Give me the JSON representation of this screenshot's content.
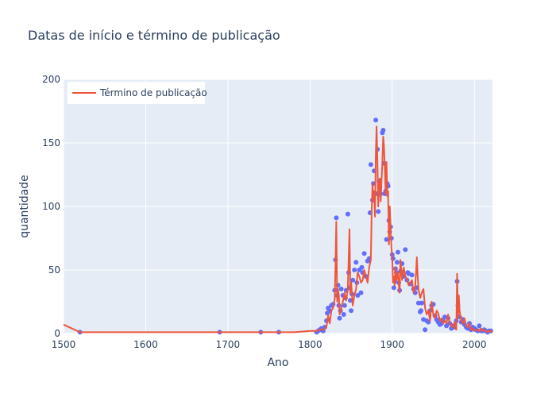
{
  "chart_data": {
    "type": "scatter",
    "title": "Datas de início e término de publicação",
    "xlabel": "Ano",
    "ylabel": "quantidade",
    "xlim": [
      1500,
      2022
    ],
    "ylim": [
      0,
      200
    ],
    "xticks": [
      1500,
      1600,
      1700,
      1800,
      1900,
      2000
    ],
    "yticks": [
      0,
      50,
      100,
      150,
      200
    ],
    "grid": true,
    "legend_position": "top-left",
    "colors": {
      "line": "#ef553b",
      "markers": "#636efa",
      "plot_bg": "#e5ecf6",
      "grid": "#ffffff",
      "text": "#2a3f5f"
    },
    "series": [
      {
        "kind": "markers",
        "x": [
          1520,
          1690,
          1740,
          1762,
          1808,
          1810,
          1812,
          1814,
          1816,
          1818,
          1820,
          1821,
          1822,
          1824,
          1826,
          1828,
          1830,
          1831,
          1832,
          1833,
          1834,
          1835,
          1836,
          1837,
          1838,
          1840,
          1841,
          1842,
          1843,
          1844,
          1846,
          1847,
          1848,
          1849,
          1850,
          1851,
          1852,
          1854,
          1856,
          1857,
          1858,
          1860,
          1862,
          1863,
          1864,
          1866,
          1868,
          1870,
          1872,
          1873,
          1874,
          1876,
          1877,
          1878,
          1880,
          1881,
          1882,
          1883,
          1884,
          1885,
          1886,
          1888,
          1889,
          1890,
          1891,
          1892,
          1893,
          1894,
          1895,
          1896,
          1897,
          1898,
          1899,
          1900,
          1901,
          1902,
          1903,
          1904,
          1905,
          1906,
          1907,
          1908,
          1909,
          1910,
          1912,
          1914,
          1916,
          1918,
          1919,
          1920,
          1922,
          1924,
          1926,
          1928,
          1930,
          1932,
          1934,
          1935,
          1936,
          1938,
          1940,
          1942,
          1944,
          1946,
          1948,
          1950,
          1952,
          1954,
          1956,
          1958,
          1960,
          1962,
          1964,
          1966,
          1968,
          1970,
          1972,
          1974,
          1976,
          1978,
          1979,
          1980,
          1982,
          1984,
          1986,
          1988,
          1990,
          1992,
          1994,
          1996,
          1998,
          2000,
          2002,
          2004,
          2006,
          2008,
          2010,
          2012,
          2014,
          2016,
          2018,
          2020
        ],
        "y": [
          1,
          1,
          1,
          1,
          1,
          2,
          3,
          4,
          2,
          5,
          10,
          16,
          20,
          18,
          22,
          23,
          34,
          58,
          91,
          30,
          38,
          22,
          12,
          18,
          35,
          30,
          15,
          22,
          28,
          34,
          94,
          48,
          36,
          26,
          18,
          31,
          42,
          50,
          56,
          40,
          30,
          50,
          32,
          52,
          48,
          63,
          45,
          57,
          59,
          95,
          133,
          105,
          118,
          128,
          168,
          110,
          145,
          96,
          120,
          115,
          110,
          158,
          160,
          134,
          110,
          112,
          74,
          118,
          116,
          89,
          80,
          84,
          75,
          62,
          59,
          36,
          41,
          51,
          48,
          56,
          64,
          40,
          34,
          49,
          55,
          45,
          66,
          42,
          48,
          47,
          39,
          46,
          35,
          32,
          36,
          24,
          17,
          18,
          24,
          11,
          3,
          10,
          9,
          18,
          22,
          23,
          14,
          11,
          9,
          7,
          8,
          10,
          13,
          6,
          12,
          8,
          4,
          6,
          5,
          10,
          41,
          22,
          13,
          9,
          11,
          7,
          5,
          4,
          8,
          3,
          5,
          4,
          3,
          2,
          6,
          2,
          2,
          3,
          2,
          1,
          2,
          2
        ]
      },
      {
        "name": "Término de publicação",
        "kind": "line",
        "x": [
          1500,
          1520,
          1600,
          1700,
          1780,
          1800,
          1808,
          1812,
          1816,
          1818,
          1820,
          1822,
          1824,
          1826,
          1828,
          1830,
          1831,
          1832,
          1833,
          1834,
          1835,
          1836,
          1838,
          1840,
          1842,
          1844,
          1846,
          1847,
          1848,
          1849,
          1850,
          1852,
          1854,
          1856,
          1858,
          1860,
          1862,
          1864,
          1866,
          1868,
          1870,
          1872,
          1874,
          1875,
          1876,
          1877,
          1878,
          1879,
          1880,
          1881,
          1882,
          1883,
          1884,
          1885,
          1886,
          1887,
          1888,
          1889,
          1890,
          1891,
          1892,
          1893,
          1894,
          1895,
          1896,
          1897,
          1898,
          1899,
          1900,
          1901,
          1902,
          1903,
          1904,
          1905,
          1906,
          1907,
          1908,
          1909,
          1910,
          1911,
          1912,
          1914,
          1916,
          1918,
          1920,
          1922,
          1924,
          1926,
          1928,
          1929,
          1930,
          1931,
          1932,
          1934,
          1936,
          1938,
          1940,
          1942,
          1944,
          1946,
          1948,
          1950,
          1952,
          1954,
          1956,
          1958,
          1960,
          1962,
          1964,
          1966,
          1968,
          1970,
          1972,
          1974,
          1976,
          1977,
          1978,
          1979,
          1980,
          1981,
          1982,
          1984,
          1986,
          1988,
          1990,
          1992,
          1994,
          1996,
          1998,
          2000,
          2002,
          2004,
          2006,
          2008,
          2010,
          2012,
          2014,
          2016,
          2018,
          2020,
          2022
        ],
        "y": [
          7,
          1,
          1,
          1,
          1,
          2,
          2,
          3,
          3,
          4,
          5,
          14,
          8,
          18,
          20,
          27,
          55,
          88,
          25,
          35,
          30,
          15,
          20,
          25,
          32,
          26,
          35,
          60,
          82,
          32,
          40,
          22,
          30,
          35,
          48,
          45,
          40,
          42,
          50,
          45,
          40,
          52,
          58,
          95,
          118,
          105,
          112,
          92,
          140,
          163,
          135,
          100,
          115,
          122,
          104,
          120,
          135,
          155,
          148,
          130,
          110,
          135,
          108,
          112,
          70,
          100,
          85,
          68,
          60,
          40,
          45,
          38,
          52,
          42,
          44,
          48,
          38,
          32,
          58,
          50,
          42,
          52,
          45,
          43,
          38,
          40,
          42,
          32,
          38,
          48,
          60,
          45,
          35,
          28,
          32,
          35,
          20,
          15,
          18,
          10,
          25,
          15,
          12,
          18,
          16,
          10,
          12,
          8,
          10,
          8,
          15,
          8,
          6,
          5,
          9,
          4,
          3,
          47,
          12,
          30,
          18,
          10,
          8,
          12,
          6,
          5,
          8,
          3,
          4,
          2,
          3,
          3,
          2,
          4,
          2,
          3,
          2,
          1,
          2,
          2,
          1
        ]
      }
    ]
  }
}
